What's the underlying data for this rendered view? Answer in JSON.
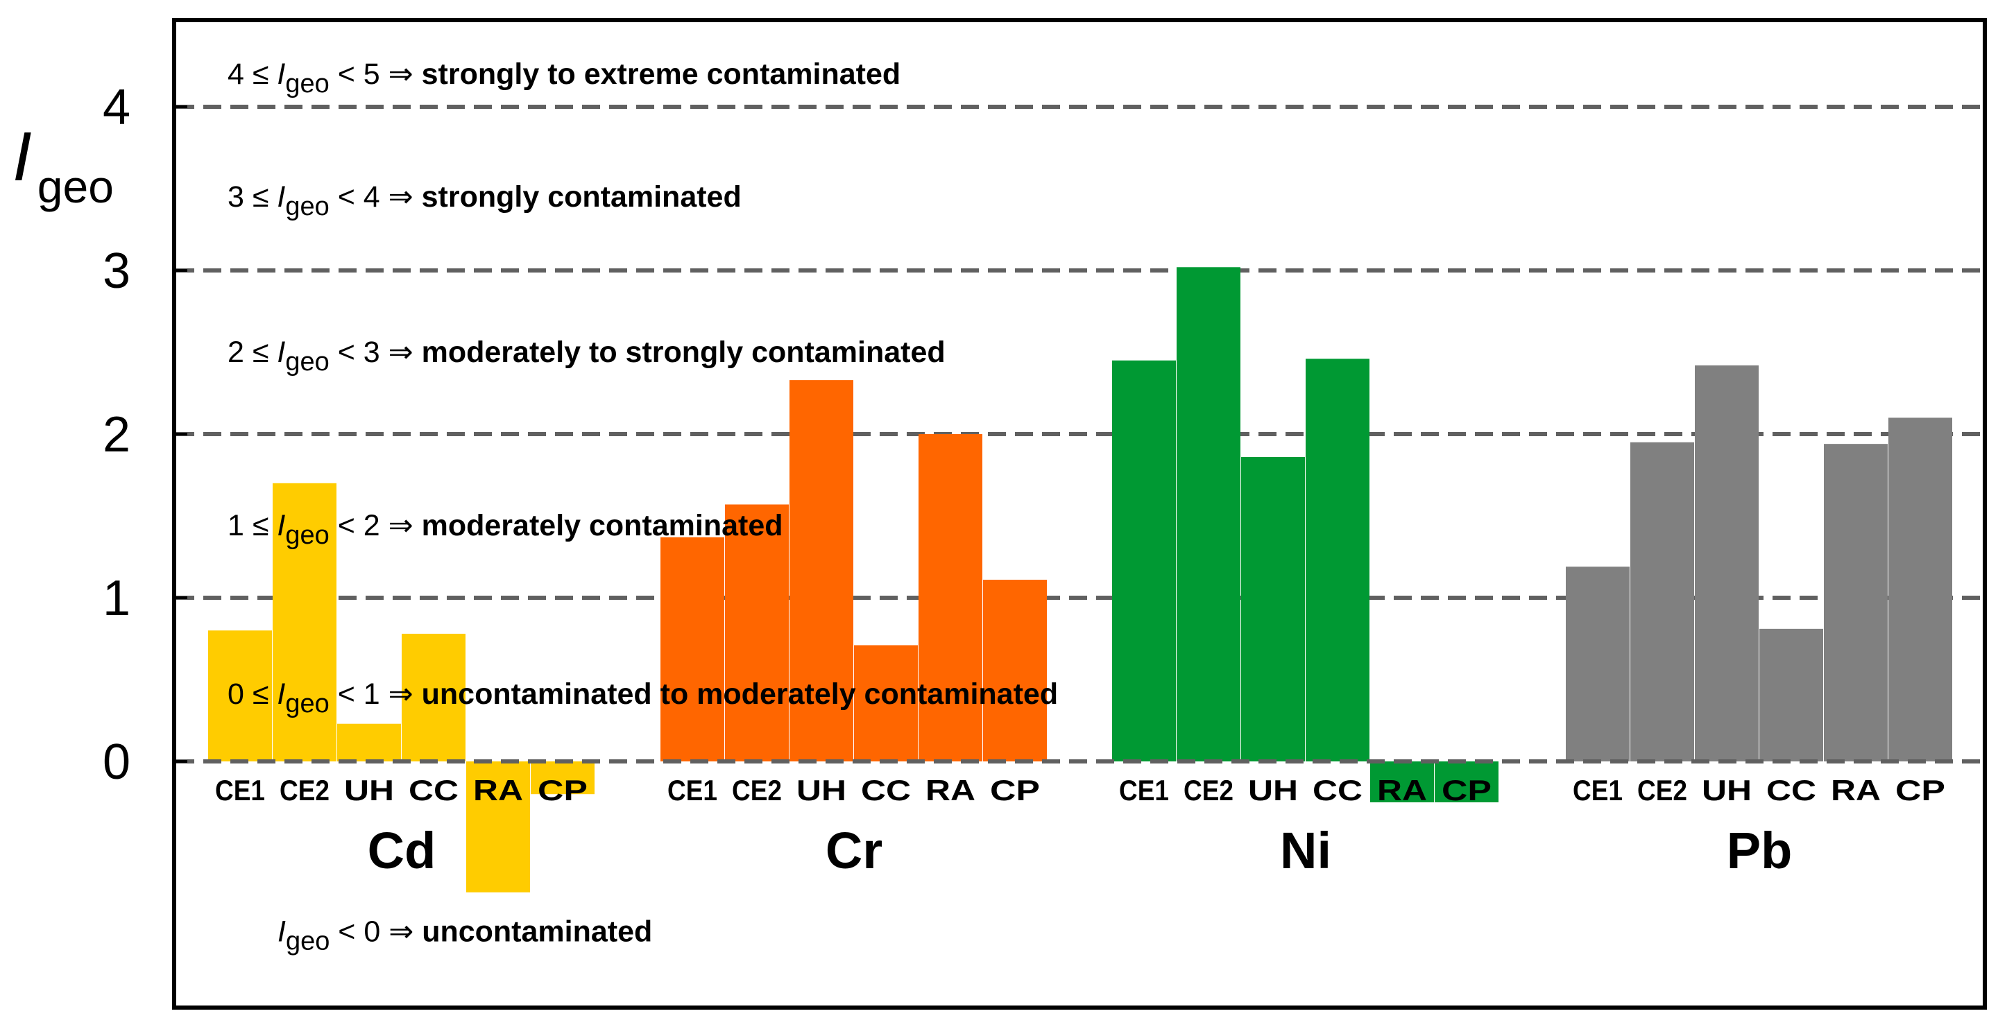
{
  "chart_data": {
    "type": "bar",
    "ylabel": {
      "main": "I",
      "sub": "geo"
    },
    "ylim": [
      -1.3,
      4.5
    ],
    "yticks": [
      0,
      1,
      2,
      3,
      4
    ],
    "gridlines": [
      0,
      1,
      2,
      3,
      4
    ],
    "categories": [
      "CE1",
      "CE2",
      "UH",
      "CC",
      "RA",
      "CP"
    ],
    "groups": [
      {
        "name": "Cd",
        "color": "#ffcc00",
        "values": [
          0.8,
          1.7,
          0.23,
          0.78,
          -0.8,
          -0.2
        ],
        "label_bg": [
          false,
          false,
          false,
          false,
          true,
          true
        ]
      },
      {
        "name": "Cr",
        "color": "#ff6600",
        "values": [
          1.37,
          1.57,
          2.33,
          0.71,
          2.0,
          1.11
        ],
        "label_bg": [
          false,
          false,
          false,
          false,
          false,
          false
        ]
      },
      {
        "name": "Ni",
        "color": "#009933",
        "values": [
          2.45,
          3.02,
          1.86,
          2.46,
          -0.25,
          -0.25
        ],
        "label_bg": [
          false,
          false,
          false,
          false,
          true,
          true
        ]
      },
      {
        "name": "Pb",
        "color": "#808080",
        "values": [
          1.19,
          1.95,
          2.42,
          0.81,
          1.94,
          2.1
        ],
        "label_bg": [
          false,
          false,
          false,
          false,
          false,
          false
        ]
      }
    ],
    "annotations": [
      {
        "y": 4.2,
        "pre": "4 ≤ ",
        "var": "I",
        "sub": "geo",
        "op": " < 5 ⇒ ",
        "text": "strongly to extreme  contaminated"
      },
      {
        "y": 3.45,
        "pre": "3 ≤ ",
        "var": "I",
        "sub": "geo",
        "op": " < 4 ⇒ ",
        "text": "strongly contaminated"
      },
      {
        "y": 2.5,
        "pre": "2 ≤ ",
        "var": "I",
        "sub": "geo",
        "op": " < 3 ⇒ ",
        "text": "moderately to strongly contaminated"
      },
      {
        "y": 1.44,
        "pre": "1 ≤ ",
        "var": "I",
        "sub": "geo",
        "op": " < 2 ⇒ ",
        "text": "moderately contaminated"
      },
      {
        "y": 0.41,
        "pre": "0 ≤ ",
        "var": "I",
        "sub": "geo",
        "op": " < 1 ⇒ ",
        "text": "uncontaminated  to moderately contaminated"
      },
      {
        "y": -1.04,
        "pre": "",
        "var": "I",
        "sub": "geo",
        "op": " < 0 ⇒  ",
        "text": "uncontaminated"
      }
    ]
  },
  "colors": {
    "frame": "#000000",
    "grid": "#606060",
    "text": "#000000"
  }
}
